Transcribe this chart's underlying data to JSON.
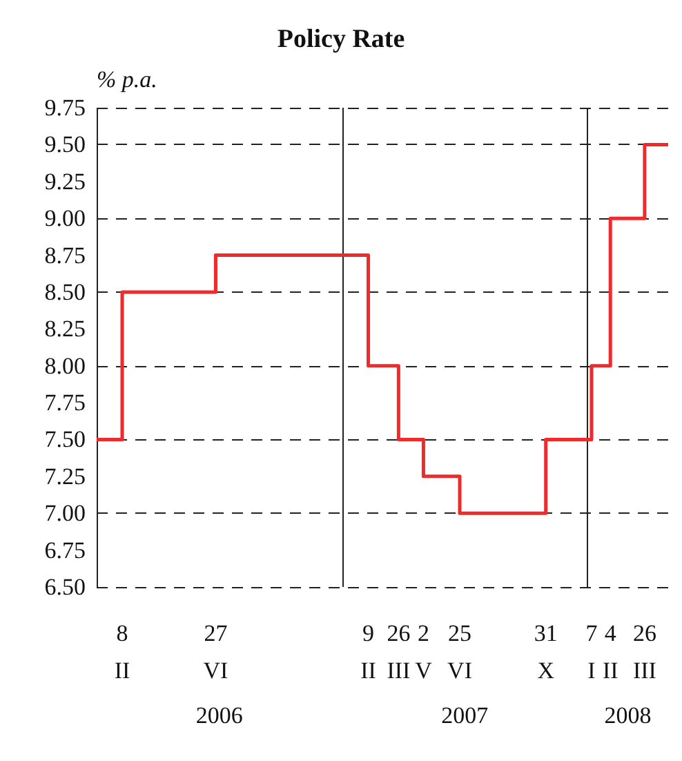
{
  "chart_data": {
    "type": "step",
    "title": "Policy Rate",
    "ylabel": "% p.a.",
    "x": [
      "2006-01-01",
      "2006-02-08",
      "2006-06-27",
      "2007-02-09",
      "2007-03-26",
      "2007-05-02",
      "2007-06-25",
      "2007-10-31",
      "2008-01-07",
      "2008-02-04",
      "2008-03-26",
      "2008-04-30"
    ],
    "series": [
      {
        "color": "#ee2a2a",
        "values": [
          7.5,
          8.5,
          8.75,
          8.0,
          7.5,
          7.25,
          7.0,
          7.5,
          8.0,
          9.0,
          9.5,
          9.5
        ]
      }
    ],
    "xlim": [
      "2006-01-01",
      "2008-04-30"
    ],
    "xticks": [
      {
        "value": "2006-02-08",
        "label": "8\nII"
      },
      {
        "value": "2006-06-27",
        "label": "27\nVI"
      },
      {
        "value": "2007-02-09",
        "label": "9\nII"
      },
      {
        "value": "2007-03-26",
        "label": "26\nIII"
      },
      {
        "value": "2007-05-02",
        "label": "2\nV"
      },
      {
        "value": "2007-06-25",
        "label": "25\nVI"
      },
      {
        "value": "2007-10-31",
        "label": "31\nX"
      },
      {
        "value": "2008-01-07",
        "label": "7\nI"
      },
      {
        "value": "2008-02-04",
        "label": "4\nII"
      },
      {
        "value": "2008-03-26",
        "label": "26\nIII"
      }
    ],
    "annotations": [
      "2006",
      "2007",
      "2008"
    ],
    "ylim": [
      6.5,
      9.75
    ],
    "yticks": [
      {
        "value": 6.5,
        "label": "6.50"
      },
      6.75,
      {
        "value": 7.0,
        "label": "7.00"
      },
      7.25,
      {
        "value": 7.5,
        "label": "7.50"
      },
      7.75,
      {
        "value": 8.0,
        "label": "8.00"
      },
      8.25,
      {
        "value": 8.5,
        "label": "8.50"
      },
      8.75,
      {
        "value": 9.0,
        "label": "9.00"
      },
      9.25,
      {
        "value": 9.5,
        "label": "9.50"
      },
      9.75
    ],
    "grid": "y",
    "line_style": "solid",
    "marker": "none",
    "ref_lines": [
      {
        "axis": "x",
        "value": "2006-01-01",
        "color": "#222222",
        "line_style": "solid"
      },
      {
        "axis": "x",
        "value": "2007-01-01",
        "color": "#222222",
        "line_style": "solid"
      },
      {
        "axis": "x",
        "value": "2008-01-01",
        "color": "#222222",
        "line_style": "solid"
      }
    ]
  }
}
